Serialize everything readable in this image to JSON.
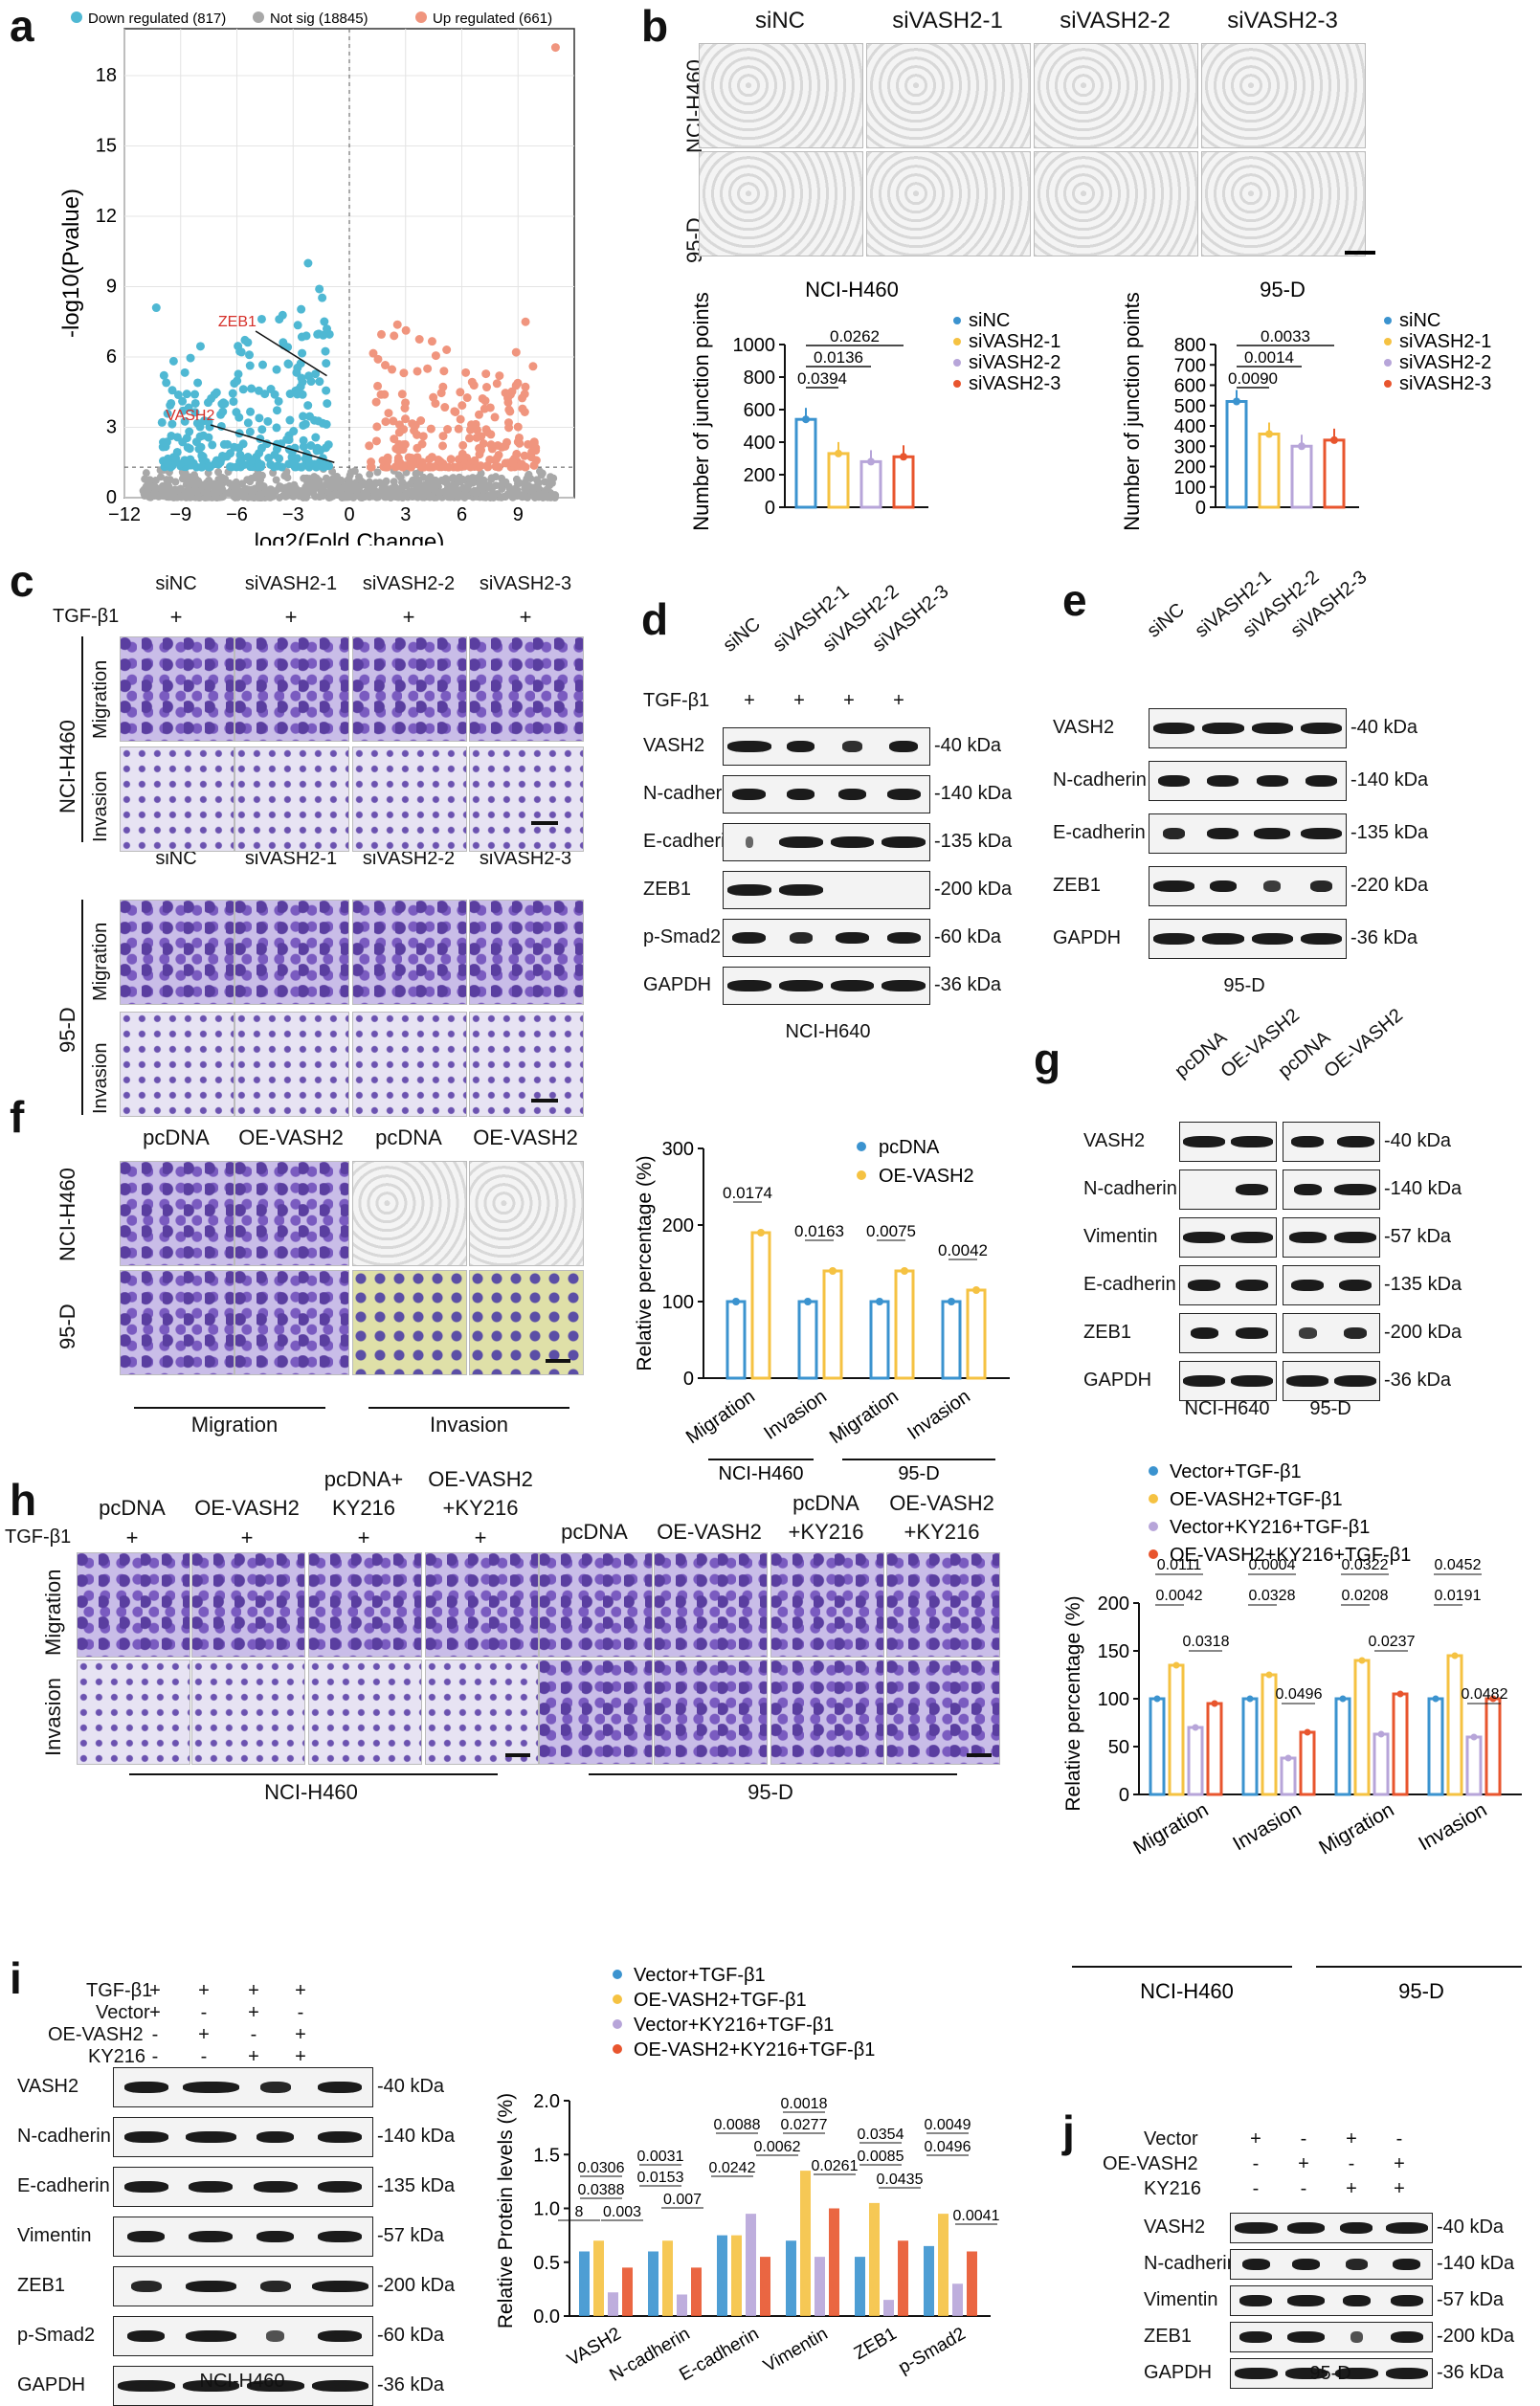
{
  "panel_letters": {
    "a": "a",
    "b": "b",
    "c": "c",
    "d": "d",
    "e": "e",
    "f": "f",
    "g": "g",
    "h": "h",
    "i": "i",
    "j": "j"
  },
  "volcano": {
    "legend": [
      "Down regulated (817)",
      "Not sig (18845)",
      "Up regulated (661)"
    ],
    "ylabel": "-log10(Pvalue)",
    "xlabel": "log2(Fold Change)",
    "xticks": [
      "−12",
      "−9",
      "−6",
      "−3",
      "0",
      "3",
      "6",
      "9"
    ],
    "yticks": [
      "0",
      "3",
      "6",
      "9",
      "12",
      "15",
      "18"
    ],
    "genes": [
      "ZEB1",
      "VASH2"
    ],
    "colors": {
      "down": "#4fb8d3",
      "ns": "#a8a8a8",
      "up": "#f0957e"
    }
  },
  "panel_b": {
    "cols": [
      "siNC",
      "siVASH2-1",
      "siVASH2-2",
      "siVASH2-3"
    ],
    "rows": [
      "NCI-H460",
      "95-D"
    ]
  },
  "chart_data": [
    {
      "type": "bar",
      "title": "NCI-H460",
      "ylabel": "Number of junction points",
      "categories": [
        "siNC",
        "siVASH2-1",
        "siVASH2-2",
        "siVASH2-3"
      ],
      "values": [
        540,
        330,
        280,
        310
      ],
      "ylim": [
        0,
        1000
      ],
      "yticks": [
        "0",
        "200",
        "400",
        "600",
        "800",
        "1000"
      ],
      "pvalues": [
        "0.0394",
        "0.0136",
        "0.0262"
      ],
      "colors": [
        "#3b93cf",
        "#f5c242",
        "#b7a5d9",
        "#e8552e"
      ]
    },
    {
      "type": "bar",
      "title": "95-D",
      "ylabel": "Number of junction points",
      "categories": [
        "siNC",
        "siVASH2-1",
        "siVASH2-2",
        "siVASH2-3"
      ],
      "values": [
        520,
        360,
        300,
        330
      ],
      "ylim": [
        0,
        800
      ],
      "yticks": [
        "0",
        "100",
        "200",
        "300",
        "400",
        "500",
        "600",
        "700",
        "800"
      ],
      "pvalues": [
        "0.0090",
        "0.0014",
        "0.0033"
      ],
      "colors": [
        "#3b93cf",
        "#f5c242",
        "#b7a5d9",
        "#e8552e"
      ]
    },
    {
      "type": "bar",
      "ylabel": "Relative percentage (%)",
      "categories": [
        "Migration",
        "Invasion",
        "Migration",
        "Invasion"
      ],
      "groups": [
        "NCI-H460",
        "95-D"
      ],
      "series": [
        {
          "name": "pcDNA",
          "values": [
            100,
            100,
            100,
            100
          ]
        },
        {
          "name": "OE-VASH2",
          "values": [
            190,
            140,
            140,
            115
          ]
        }
      ],
      "ylim": [
        0,
        300
      ],
      "yticks": [
        "0",
        "100",
        "200",
        "300"
      ],
      "pvalues": [
        "0.0174",
        "0.0163",
        "0.0075",
        "0.0042"
      ]
    },
    {
      "type": "bar",
      "ylabel": "Relative percentage (%)",
      "categories": [
        "Migration",
        "Invasion",
        "Migration",
        "Invasion"
      ],
      "groups": [
        "NCI-H460",
        "95-D"
      ],
      "series": [
        {
          "name": "Vector+TGF-β1",
          "values": [
            100,
            100,
            100,
            100
          ]
        },
        {
          "name": "OE-VASH2+TGF-β1",
          "values": [
            135,
            125,
            140,
            145
          ]
        },
        {
          "name": "Vector+KY216+TGF-β1",
          "values": [
            70,
            38,
            63,
            60
          ]
        },
        {
          "name": "OE-VASH2+KY216+TGF-β1",
          "values": [
            95,
            65,
            105,
            100
          ]
        }
      ],
      "ylim": [
        0,
        200
      ],
      "yticks": [
        "0",
        "50",
        "100",
        "150",
        "200"
      ],
      "pvalues": [
        "0.0111",
        "0.0042",
        "0.0318",
        "0.0004",
        "0.0328",
        "0.0496",
        "0.0322",
        "0.0208",
        "0.0237",
        "0.0452",
        "0.0191",
        "0.0482"
      ]
    },
    {
      "type": "bar",
      "ylabel": "Relative Protein levels (%)",
      "categories": [
        "VASH2",
        "N-cadherin",
        "E-cadherin",
        "Vimentin",
        "ZEB1",
        "p-Smad2"
      ],
      "series": [
        {
          "name": "Vector+TGF-β1",
          "values": [
            0.6,
            0.6,
            0.75,
            0.7,
            0.55,
            0.65
          ]
        },
        {
          "name": "OE-VASH2+TGF-β1",
          "values": [
            0.7,
            0.7,
            0.75,
            1.35,
            1.05,
            0.95
          ]
        },
        {
          "name": "Vector+KY216+TGF-β1",
          "values": [
            0.22,
            0.2,
            0.95,
            0.55,
            0.15,
            0.3
          ]
        },
        {
          "name": "OE-VASH2+KY216+TGF-β1",
          "values": [
            0.45,
            0.45,
            0.55,
            1.0,
            0.7,
            0.6
          ]
        }
      ],
      "ylim": [
        0,
        2.0
      ],
      "yticks": [
        "0.0",
        "0.5",
        "1.0",
        "1.5",
        "2.0"
      ],
      "pvalues": [
        "0.0306",
        "0.0388",
        "0.003",
        "8",
        "0.0031",
        "0.0153",
        "0.007",
        "0.0088",
        "0.0242",
        "0.0062",
        "0.0018",
        "0.0277",
        "0.0261",
        "0.0354",
        "0.0085",
        "0.0435",
        "0.0049",
        "0.0496",
        "0.0041"
      ]
    }
  ],
  "panel_c": {
    "cols": [
      "siNC",
      "siVASH2-1",
      "siVASH2-2",
      "siVASH2-3"
    ],
    "tgf": "TGF-β1",
    "plus": "+",
    "cells": [
      "NCI-H460",
      "95-D"
    ],
    "rows": [
      "Migration",
      "Invasion"
    ]
  },
  "panel_d": {
    "lanes": [
      "siNC",
      "siVASH2-1",
      "siVASH2-2",
      "siVASH2-3"
    ],
    "tgf": "TGF-β1",
    "proteins": [
      "VASH2",
      "N-cadherin",
      "E-cadherin",
      "ZEB1",
      "p-Smad2",
      "GAPDH"
    ],
    "kda": [
      "40 kDa",
      "140 kDa",
      "135 kDa",
      "200 kDa",
      "60 kDa",
      "36 kDa"
    ],
    "caption": "NCI-H640"
  },
  "panel_e": {
    "lanes": [
      "siNC",
      "siVASH2-1",
      "siVASH2-2",
      "siVASH2-3"
    ],
    "proteins": [
      "VASH2",
      "N-cadherin",
      "E-cadherin",
      "ZEB1",
      "GAPDH"
    ],
    "kda": [
      "40 kDa",
      "140 kDa",
      "135 kDa",
      "220 kDa",
      "36 kDa"
    ],
    "caption": "95-D"
  },
  "panel_f": {
    "cols": [
      "pcDNA",
      "OE-VASH2",
      "pcDNA",
      "OE-VASH2"
    ],
    "rows": [
      "NCI-H460",
      "95-D"
    ],
    "groups": [
      "Migration",
      "Invasion"
    ],
    "legend": [
      "pcDNA",
      "OE-VASH2"
    ],
    "group_labels": [
      "NCI-H460",
      "95-D"
    ]
  },
  "panel_g": {
    "lanes": [
      "pcDNA",
      "OE-VASH2",
      "pcDNA",
      "OE-VASH2"
    ],
    "proteins": [
      "VASH2",
      "N-cadherin",
      "Vimentin",
      "E-cadherin",
      "ZEB1",
      "GAPDH"
    ],
    "kda": [
      "40 kDa",
      "140 kDa",
      "57 kDa",
      "135 kDa",
      "200 kDa",
      "36 kDa"
    ],
    "captions": [
      "NCI-H640",
      "95-D"
    ]
  },
  "panel_h": {
    "cols_left": [
      "pcDNA",
      "OE-VASH2",
      "pcDNA+ KY216",
      "OE-VASH2 +KY216"
    ],
    "cols_right": [
      "pcDNA",
      "OE-VASH2",
      "pcDNA +KY216",
      "OE-VASH2 +KY216"
    ],
    "tgf": "TGF-β1",
    "rows": [
      "Migration",
      "Invasion"
    ],
    "cells": [
      "NCI-H460",
      "95-D"
    ],
    "legend": [
      "Vector+TGF-β1",
      "OE-VASH2+TGF-β1",
      "Vector+KY216+TGF-β1",
      "OE-VASH2+KY216+TGF-β1"
    ],
    "group_labels": [
      "NCI-H460",
      "95-D"
    ]
  },
  "panel_i": {
    "conditions": [
      "TGF-β1",
      "Vector",
      "OE-VASH2",
      "KY216"
    ],
    "signs": [
      [
        "+",
        "+",
        "+",
        "+"
      ],
      [
        "+",
        "-",
        "+",
        "-"
      ],
      [
        "-",
        "+",
        "-",
        "+"
      ],
      [
        "-",
        "-",
        "+",
        "+"
      ]
    ],
    "proteins": [
      "VASH2",
      "N-cadherin",
      "E-cadherin",
      "Vimentin",
      "ZEB1",
      "p-Smad2",
      "GAPDH"
    ],
    "kda": [
      "40 kDa",
      "140 kDa",
      "135 kDa",
      "57 kDa",
      "200 kDa",
      "60 kDa",
      "36 kDa"
    ],
    "caption": "NCI-H460",
    "legend": [
      "Vector+TGF-β1",
      "OE-VASH2+TGF-β1",
      "Vector+KY216+TGF-β1",
      "OE-VASH2+KY216+TGF-β1"
    ]
  },
  "panel_j": {
    "conditions": [
      "Vector",
      "OE-VASH2",
      "KY216"
    ],
    "signs": [
      [
        "+",
        "-",
        "+",
        "-"
      ],
      [
        "-",
        "+",
        "-",
        "+"
      ],
      [
        "-",
        "-",
        "+",
        "+"
      ]
    ],
    "proteins": [
      "VASH2",
      "N-cadherin",
      "Vimentin",
      "ZEB1",
      "GAPDH"
    ],
    "kda": [
      "40 kDa",
      "140 kDa",
      "57 kDa",
      "200 kDa",
      "36 kDa"
    ],
    "caption": "95-D"
  },
  "scale_color": "#000000"
}
